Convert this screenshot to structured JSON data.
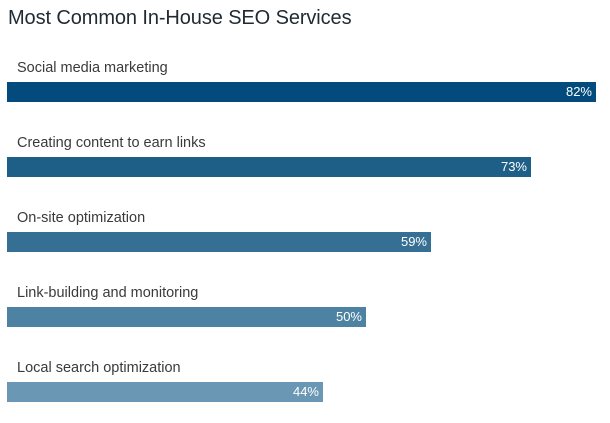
{
  "chart_data": {
    "type": "bar",
    "orientation": "horizontal",
    "title": "Most Common In-House SEO Services",
    "categories": [
      "Social media marketing",
      "Creating content to earn links",
      "On-site optimization",
      "Link-building and monitoring",
      "Local search optimization"
    ],
    "values": [
      82,
      73,
      59,
      50,
      44
    ],
    "value_labels": [
      "82%",
      "73%",
      "59%",
      "50%",
      "44%"
    ],
    "unit": "%",
    "xlim": [
      0,
      82
    ],
    "grid": false,
    "legend": "none",
    "bar_colors": [
      "#034b7c",
      "#1e5f88",
      "#366f94",
      "#4d82a2",
      "#6a97b3"
    ]
  }
}
